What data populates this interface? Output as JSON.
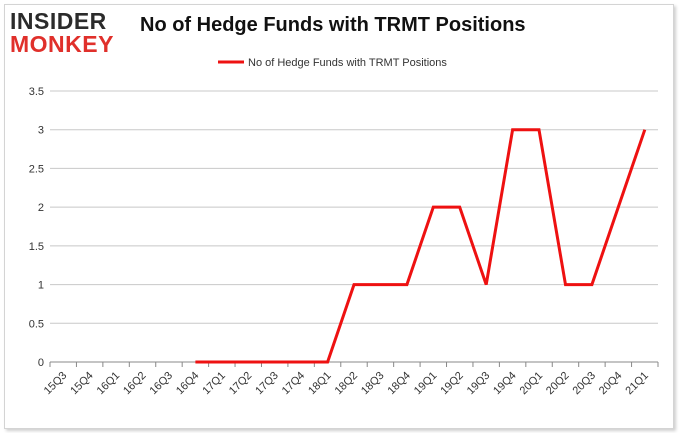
{
  "logo": {
    "line1": "INSIDER",
    "line2": "MONKEY"
  },
  "chart_data": {
    "type": "line",
    "title": "No of Hedge Funds with TRMT Positions",
    "xlabel": "",
    "ylabel": "",
    "categories": [
      "15Q3",
      "15Q4",
      "16Q1",
      "16Q2",
      "16Q3",
      "16Q4",
      "17Q1",
      "17Q2",
      "17Q3",
      "17Q4",
      "18Q1",
      "18Q2",
      "18Q3",
      "18Q4",
      "19Q1",
      "19Q2",
      "19Q3",
      "19Q4",
      "20Q1",
      "20Q2",
      "20Q3",
      "20Q4",
      "21Q1"
    ],
    "series": [
      {
        "name": "No of Hedge Funds with TRMT Positions",
        "color": "#ee1111",
        "values": [
          null,
          null,
          null,
          null,
          null,
          0,
          0,
          0,
          0,
          0,
          0,
          1,
          1,
          1,
          2,
          2,
          1,
          3,
          3,
          1,
          1,
          2,
          3
        ]
      }
    ],
    "ylim": [
      0,
      3.5
    ],
    "yticks": [
      "0",
      "0.5",
      "1",
      "1.5",
      "2",
      "2.5",
      "3",
      "3.5"
    ],
    "grid": true,
    "legend": "top-center"
  }
}
